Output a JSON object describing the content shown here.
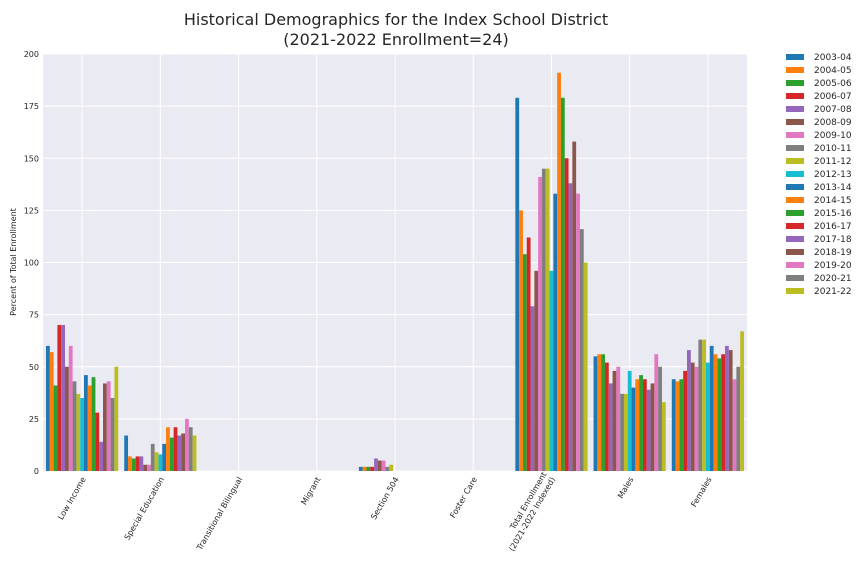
{
  "chart_data": {
    "type": "bar",
    "title_line1": "Historical Demographics for the Index School District",
    "title_line2": "(2021-2022 Enrollment=24)",
    "xlabel": "",
    "ylabel": "Percent of Total Enrollment",
    "ylim": [
      0,
      200
    ],
    "yticks": [
      0,
      25,
      50,
      75,
      100,
      125,
      150,
      175,
      200
    ],
    "grid": true,
    "legend_position": "outside-right-top",
    "categories": [
      "Low Income",
      "Special Education",
      "Transitional Bilingual",
      "Migrant",
      "Section 504",
      "Foster Care",
      "Total Enrollment\n(2021-2022 Indexed)",
      "Males",
      "Females"
    ],
    "series": [
      {
        "name": "2003-04",
        "color": "#1f77b4",
        "values": [
          60,
          17,
          0,
          0,
          2,
          0,
          179,
          55,
          44
        ]
      },
      {
        "name": "2004-05",
        "color": "#ff7f0e",
        "values": [
          57,
          7,
          0,
          0,
          2,
          0,
          125,
          56,
          43
        ]
      },
      {
        "name": "2005-06",
        "color": "#2ca02c",
        "values": [
          41,
          6,
          0,
          0,
          2,
          0,
          104,
          56,
          44
        ]
      },
      {
        "name": "2006-07",
        "color": "#d62728",
        "values": [
          70,
          7,
          0,
          0,
          2,
          0,
          112,
          52,
          48
        ]
      },
      {
        "name": "2007-08",
        "color": "#9467bd",
        "values": [
          70,
          7,
          0,
          0,
          6,
          0,
          79,
          42,
          58
        ]
      },
      {
        "name": "2008-09",
        "color": "#8c564b",
        "values": [
          50,
          3,
          0,
          0,
          5,
          0,
          96,
          48,
          52
        ]
      },
      {
        "name": "2009-10",
        "color": "#e377c2",
        "values": [
          60,
          3,
          0,
          0,
          5,
          0,
          141,
          50,
          50
        ]
      },
      {
        "name": "2010-11",
        "color": "#7f7f7f",
        "values": [
          43,
          13,
          0,
          0,
          2,
          0,
          145,
          37,
          63
        ]
      },
      {
        "name": "2011-12",
        "color": "#bcbd22",
        "values": [
          37,
          9,
          0,
          0,
          3,
          0,
          145,
          37,
          63
        ]
      },
      {
        "name": "2012-13",
        "color": "#17becf",
        "values": [
          35,
          8,
          0,
          0,
          0,
          0,
          96,
          48,
          52
        ]
      },
      {
        "name": "2013-14",
        "color": "#1f77b4",
        "values": [
          46,
          13,
          0,
          0,
          0,
          0,
          133,
          40,
          60
        ]
      },
      {
        "name": "2014-15",
        "color": "#ff7f0e",
        "values": [
          41,
          21,
          0,
          0,
          0,
          0,
          191,
          44,
          56
        ]
      },
      {
        "name": "2015-16",
        "color": "#2ca02c",
        "values": [
          45,
          16,
          0,
          0,
          0,
          0,
          179,
          46,
          54
        ]
      },
      {
        "name": "2016-17",
        "color": "#d62728",
        "values": [
          28,
          21,
          0,
          0,
          0,
          0,
          150,
          44,
          56
        ]
      },
      {
        "name": "2017-18",
        "color": "#9467bd",
        "values": [
          14,
          17,
          0,
          0,
          0,
          0,
          138,
          39,
          60
        ]
      },
      {
        "name": "2018-19",
        "color": "#8c564b",
        "values": [
          42,
          18,
          0,
          0,
          0,
          0,
          158,
          42,
          58
        ]
      },
      {
        "name": "2019-20",
        "color": "#e377c2",
        "values": [
          43,
          25,
          0,
          0,
          0,
          0,
          133,
          56,
          44
        ]
      },
      {
        "name": "2020-21",
        "color": "#7f7f7f",
        "values": [
          35,
          21,
          0,
          0,
          0,
          0,
          116,
          50,
          50
        ]
      },
      {
        "name": "2021-22",
        "color": "#bcbd22",
        "values": [
          50,
          17,
          0,
          0,
          0,
          0,
          100,
          33,
          67
        ]
      }
    ]
  },
  "style": {
    "plot_background": "#eaeaf2",
    "grid_color": "#ffffff",
    "text_color": "#262626"
  }
}
